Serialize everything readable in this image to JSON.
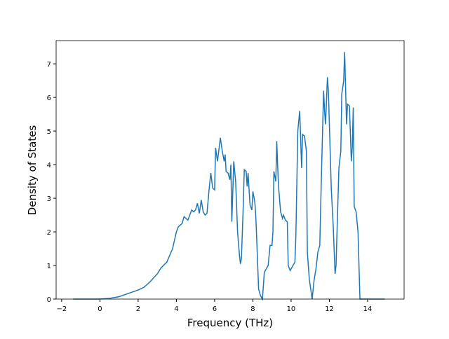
{
  "chart_data": {
    "type": "line",
    "x_label": "Frequency (THz)",
    "y_label": "Density of States",
    "x": [
      -1.4,
      -0.5,
      0,
      0.5,
      1,
      1.5,
      2,
      2.3,
      2.6,
      3,
      3.2,
      3.5,
      3.8,
      4,
      4.1,
      4.3,
      4.4,
      4.6,
      4.7,
      4.8,
      4.9,
      5.0,
      5.1,
      5.2,
      5.3,
      5.4,
      5.5,
      5.6,
      5.7,
      5.8,
      5.9,
      6.0,
      6.05,
      6.15,
      6.3,
      6.4,
      6.5,
      6.55,
      6.6,
      6.7,
      6.8,
      6.85,
      6.9,
      7.0,
      7.1,
      7.2,
      7.3,
      7.35,
      7.4,
      7.5,
      7.55,
      7.65,
      7.7,
      7.75,
      7.85,
      7.95,
      8.0,
      8.1,
      8.15,
      8.2,
      8.3,
      8.4,
      8.5,
      8.6,
      8.7,
      8.8,
      8.9,
      9.0,
      9.05,
      9.1,
      9.2,
      9.25,
      9.3,
      9.35,
      9.45,
      9.55,
      9.6,
      9.7,
      9.8,
      9.85,
      9.95,
      10.05,
      10.2,
      10.25,
      10.35,
      10.45,
      10.55,
      10.6,
      10.7,
      10.8,
      10.85,
      10.95,
      11.05,
      11.1,
      11.2,
      11.3,
      11.4,
      11.5,
      11.6,
      11.7,
      11.75,
      11.8,
      11.9,
      11.95,
      12.1,
      12.2,
      12.3,
      12.35,
      12.5,
      12.6,
      12.65,
      12.75,
      12.8,
      12.9,
      12.95,
      13.05,
      13.15,
      13.2,
      13.25,
      13.3,
      13.4,
      13.5,
      13.6,
      14.9
    ],
    "series": [
      {
        "color": "#1f77b4",
        "values": [
          0,
          0,
          0,
          0.02,
          0.07,
          0.17,
          0.27,
          0.35,
          0.5,
          0.75,
          0.93,
          1.1,
          1.5,
          2.0,
          2.15,
          2.25,
          2.45,
          2.35,
          2.5,
          2.65,
          2.6,
          2.65,
          2.85,
          2.55,
          2.95,
          2.6,
          2.5,
          2.55,
          3.2,
          3.75,
          3.3,
          3.25,
          4.5,
          4.1,
          4.8,
          4.4,
          4.1,
          4.3,
          3.8,
          3.75,
          3.55,
          4.0,
          2.3,
          4.1,
          3.5,
          2.0,
          1.3,
          1.05,
          1.2,
          2.8,
          3.85,
          3.8,
          3.35,
          3.75,
          2.8,
          2.65,
          3.2,
          2.9,
          2.5,
          1.8,
          0.3,
          0.1,
          0.0,
          0.8,
          0.9,
          1.0,
          1.6,
          1.6,
          2.0,
          3.8,
          3.5,
          4.7,
          3.9,
          3.3,
          2.6,
          2.4,
          2.5,
          2.35,
          2.3,
          1.0,
          0.85,
          0.95,
          1.1,
          1.9,
          5.0,
          5.6,
          3.9,
          4.9,
          4.85,
          4.4,
          1.4,
          0.6,
          0.2,
          0.0,
          0.55,
          0.9,
          1.4,
          1.6,
          4.0,
          6.2,
          5.6,
          5.2,
          6.6,
          6.2,
          3.3,
          2.2,
          0.75,
          1.0,
          3.9,
          4.4,
          6.1,
          6.5,
          7.35,
          5.2,
          5.8,
          5.75,
          4.1,
          4.5,
          5.7,
          2.75,
          2.6,
          2.0,
          0.0,
          0
        ]
      }
    ],
    "xlim": [
      -2.29,
      15.91
    ],
    "ylim": [
      0,
      7.69
    ],
    "xticks": [
      {
        "value": -2,
        "label": "−2"
      },
      0,
      2,
      4,
      6,
      8,
      10,
      12,
      14
    ],
    "yticks": [
      0,
      1,
      2,
      3,
      4,
      5,
      6,
      7
    ]
  }
}
